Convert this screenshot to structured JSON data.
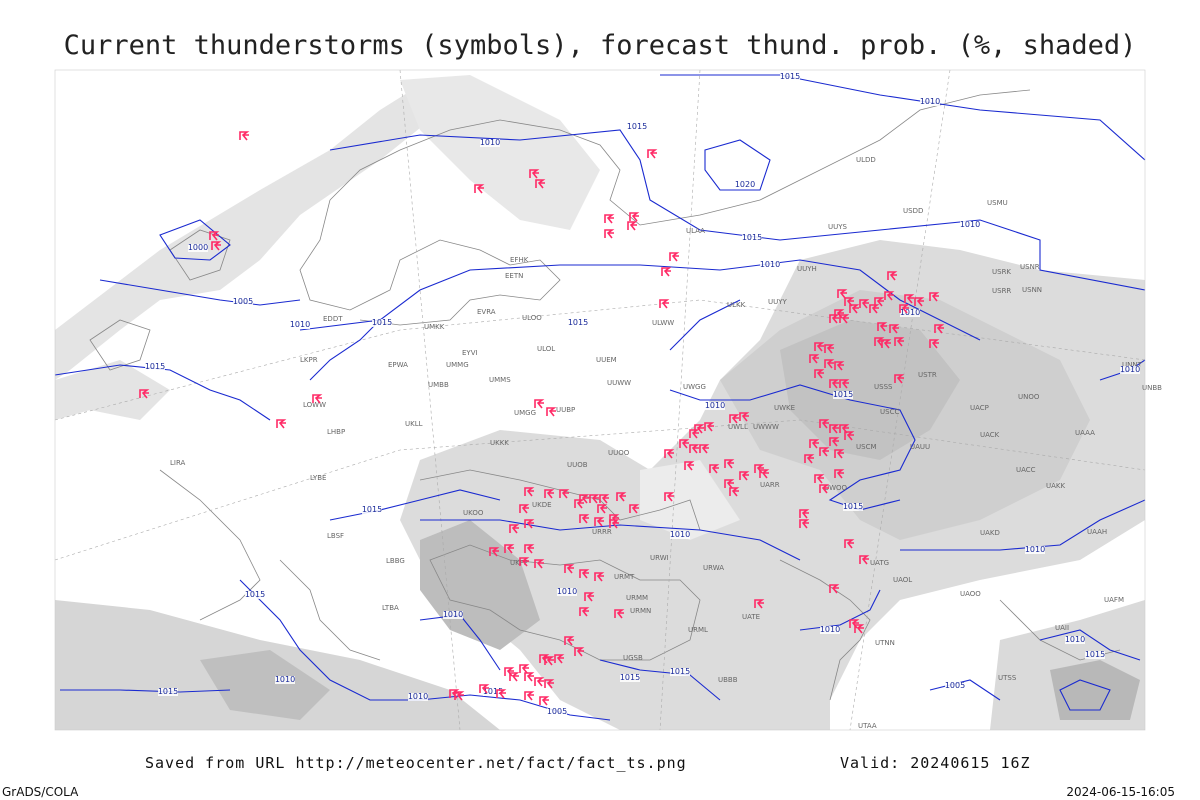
{
  "header": {
    "title": "Current thunderstorms (symbols), forecast thund. prob. (%, shaded)"
  },
  "isobar_labels": [
    1015,
    1010,
    1015,
    1010,
    1020,
    1015,
    1010,
    1010,
    1000,
    1005,
    1010,
    1015,
    1015,
    1010,
    1015,
    1010,
    1015,
    1010,
    1015,
    1015,
    1010,
    1010,
    1010,
    1010,
    1015,
    1010,
    1015,
    1010,
    1015,
    1015,
    1010,
    1015,
    1005,
    1005,
    1010,
    1015
  ],
  "stations": [
    "EFHK",
    "EETN",
    "EVRA",
    "EYVI",
    "UMMG",
    "UMMS",
    "UMKK",
    "EPWA",
    "UMBB",
    "UKLL",
    "UKKK",
    "UUOO",
    "UUOB",
    "URRR",
    "URWI",
    "URWA",
    "URMT",
    "URMM",
    "URMN",
    "URML",
    "UGSB",
    "UBBB",
    "UATE",
    "UARR",
    "UWOO",
    "UWWW",
    "UWKE",
    "UWGG",
    "UWLL",
    "UUYY",
    "ULKK",
    "ULWW",
    "UUYH",
    "UUYS",
    "USDD",
    "ULDD",
    "USMU",
    "USRR",
    "USRK",
    "USNR",
    "USNN",
    "USTR",
    "USSS",
    "USCC",
    "USCM",
    "UAUU",
    "UACP",
    "UACK",
    "UAAA",
    "UNOO",
    "UNBB",
    "UNNT",
    "UACC",
    "UAKK",
    "UAKD",
    "UAAH",
    "UATG",
    "UAOL",
    "UAOO",
    "UAFM",
    "UAII",
    "UTSS",
    "UTAA",
    "UTNN",
    "LIRA",
    "LYBE",
    "LBSF",
    "LBBG",
    "LTBA",
    "LKPR",
    "LHBP",
    "EDDT",
    "LOWW",
    "UKDE",
    "UKOO",
    "UKFF",
    "UUBP",
    "UMGG",
    "ULOO",
    "ULOL",
    "UUEM",
    "UUWW",
    "ULAA"
  ],
  "footer": {
    "source": "Saved from URL http://meteocenter.net/fact/fact_ts.png",
    "valid": "Valid: 20240615 16Z",
    "software": "GrADS/COLA",
    "timestamp": "2024-06-15-16:05"
  }
}
